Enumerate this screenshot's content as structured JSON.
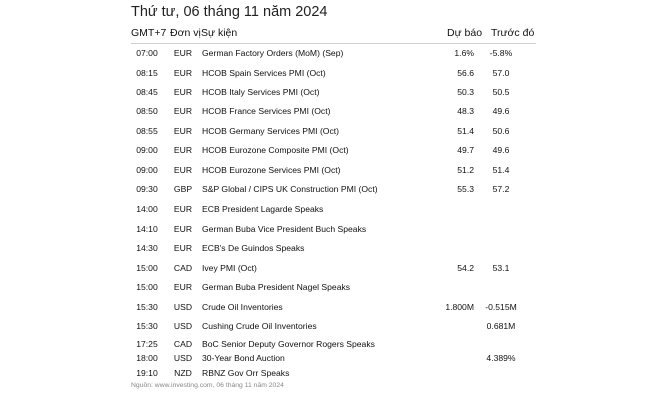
{
  "title": "Thứ tư, 06 tháng 11 năm 2024",
  "headers": {
    "time": "GMT+7",
    "currency": "Đơn vị",
    "event": "Sự kiện",
    "actual": "Dự báo",
    "previous": "Trước đó"
  },
  "rows": [
    {
      "time": "07:00",
      "currency": "EUR",
      "event": "German Factory Orders (MoM) (Sep)",
      "actual": "1.6%",
      "previous": "-5.8%"
    },
    {
      "time": "08:15",
      "currency": "EUR",
      "event": "HCOB Spain Services PMI (Oct)",
      "actual": "56.6",
      "previous": "57.0"
    },
    {
      "time": "08:45",
      "currency": "EUR",
      "event": "HCOB Italy Services PMI (Oct)",
      "actual": "50.3",
      "previous": "50.5"
    },
    {
      "time": "08:50",
      "currency": "EUR",
      "event": "HCOB France Services PMI (Oct)",
      "actual": "48.3",
      "previous": "49.6"
    },
    {
      "time": "08:55",
      "currency": "EUR",
      "event": "HCOB Germany Services PMI (Oct)",
      "actual": "51.4",
      "previous": "50.6"
    },
    {
      "time": "09:00",
      "currency": "EUR",
      "event": "HCOB Eurozone Composite PMI (Oct)",
      "actual": "49.7",
      "previous": "49.6"
    },
    {
      "time": "09:00",
      "currency": "EUR",
      "event": "HCOB Eurozone Services PMI (Oct)",
      "actual": "51.2",
      "previous": "51.4"
    },
    {
      "time": "09:30",
      "currency": "GBP",
      "event": "S&P Global / CIPS UK Construction PMI (Oct)",
      "actual": "55.3",
      "previous": "57.2"
    },
    {
      "time": "14:00",
      "currency": "EUR",
      "event": "ECB President Lagarde Speaks",
      "actual": "",
      "previous": ""
    },
    {
      "time": "14:10",
      "currency": "EUR",
      "event": "German Buba Vice President Buch Speaks",
      "actual": "",
      "previous": ""
    },
    {
      "time": "14:30",
      "currency": "EUR",
      "event": "ECB's De Guindos Speaks",
      "actual": "",
      "previous": ""
    },
    {
      "time": "15:00",
      "currency": "CAD",
      "event": "Ivey PMI (Oct)",
      "actual": "54.2",
      "previous": "53.1"
    },
    {
      "time": "15:00",
      "currency": "EUR",
      "event": "German Buba President Nagel Speaks",
      "actual": "",
      "previous": ""
    },
    {
      "time": "15:30",
      "currency": "USD",
      "event": "Crude Oil Inventories",
      "actual": "1.800M",
      "previous": "-0.515M"
    },
    {
      "time": "15:30",
      "currency": "USD",
      "event": "Cushing Crude Oil Inventories",
      "actual": "",
      "previous": "0.681M"
    },
    {
      "time": "17:25",
      "currency": "CAD",
      "event": "BoC Senior Deputy Governor Rogers Speaks",
      "actual": "",
      "previous": ""
    },
    {
      "time": "18:00",
      "currency": "USD",
      "event": "30-Year Bond Auction",
      "actual": "",
      "previous": "4.389%"
    },
    {
      "time": "19:10",
      "currency": "NZD",
      "event": "RBNZ Gov Orr Speaks",
      "actual": "",
      "previous": ""
    }
  ],
  "source": "Nguồn: www.investing.com, 06 tháng 11 năm 2024"
}
